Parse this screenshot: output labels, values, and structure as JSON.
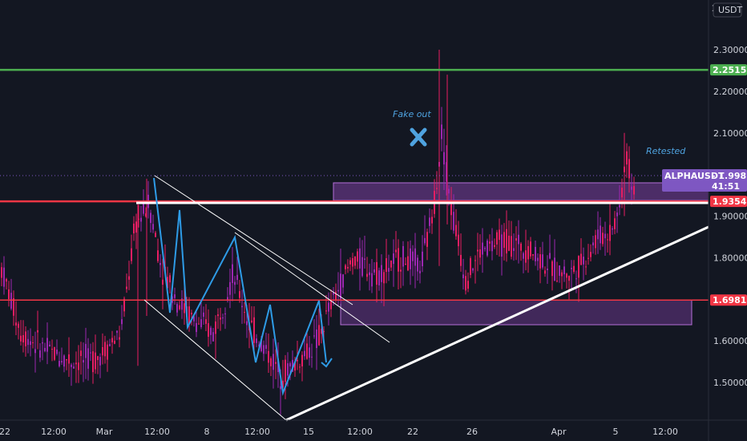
{
  "chart_data": {
    "type": "candlestick",
    "symbol": "ALPHAUSDT",
    "currency": "USDT",
    "countdown": "41:51",
    "last_price": 1.99865,
    "y_axis": {
      "ticks": [
        2.3,
        2.2,
        2.1,
        1.9,
        1.8,
        1.6,
        1.5
      ],
      "tick_labels": [
        "2.30000",
        "2.20000",
        "2.10000",
        "1.90000",
        "1.80000",
        "1.60000",
        "1.50000"
      ],
      "top_partial_label": "2"
    },
    "x_axis": {
      "tick_labels": [
        "22",
        "12:00",
        "Mar",
        "12:00",
        "8",
        "12:00",
        "15",
        "12:00",
        "22",
        "26",
        "Apr",
        "5",
        "12:00"
      ]
    },
    "levels": [
      {
        "id": "resistance-green",
        "price": 2.25153,
        "label": "2.25153",
        "color": "#4caf50"
      },
      {
        "id": "key-red-upper",
        "price": 1.93542,
        "label": "1.93542",
        "color": "#f23645"
      },
      {
        "id": "key-red-lower",
        "price": 1.69812,
        "label": "1.69812",
        "color": "#f23645"
      }
    ],
    "annotations": [
      "Fake out",
      "Retested"
    ],
    "colors": {
      "background": "#131722",
      "candle_bull": "#9c27b0",
      "candle_bear": "#e91e63",
      "zone": "#7b3fa0",
      "zigzag": "#2e9be6",
      "symbol_tag": "#7e57c2",
      "trendline": "#ffffff"
    }
  }
}
